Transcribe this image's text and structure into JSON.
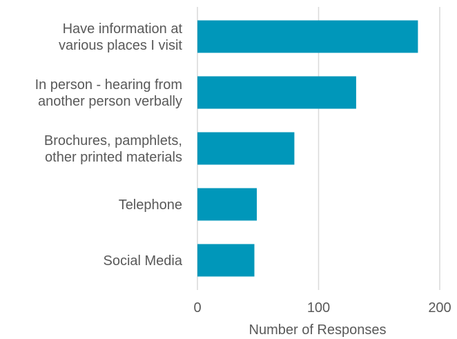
{
  "chart_data": {
    "type": "bar",
    "orientation": "horizontal",
    "categories": [
      [
        "Have information at",
        "various places I visit"
      ],
      [
        "In person - hearing from",
        "another person verbally"
      ],
      [
        "Brochures, pamphlets,",
        "other printed materials"
      ],
      [
        "Telephone"
      ],
      [
        "Social Media"
      ]
    ],
    "values": [
      182,
      131,
      80,
      49,
      47
    ],
    "xlabel": "Number of Responses",
    "xlim": [
      0,
      200
    ],
    "xticks": [
      "0",
      "100",
      "200"
    ],
    "grid": true,
    "bar_color": "#0097BA"
  }
}
